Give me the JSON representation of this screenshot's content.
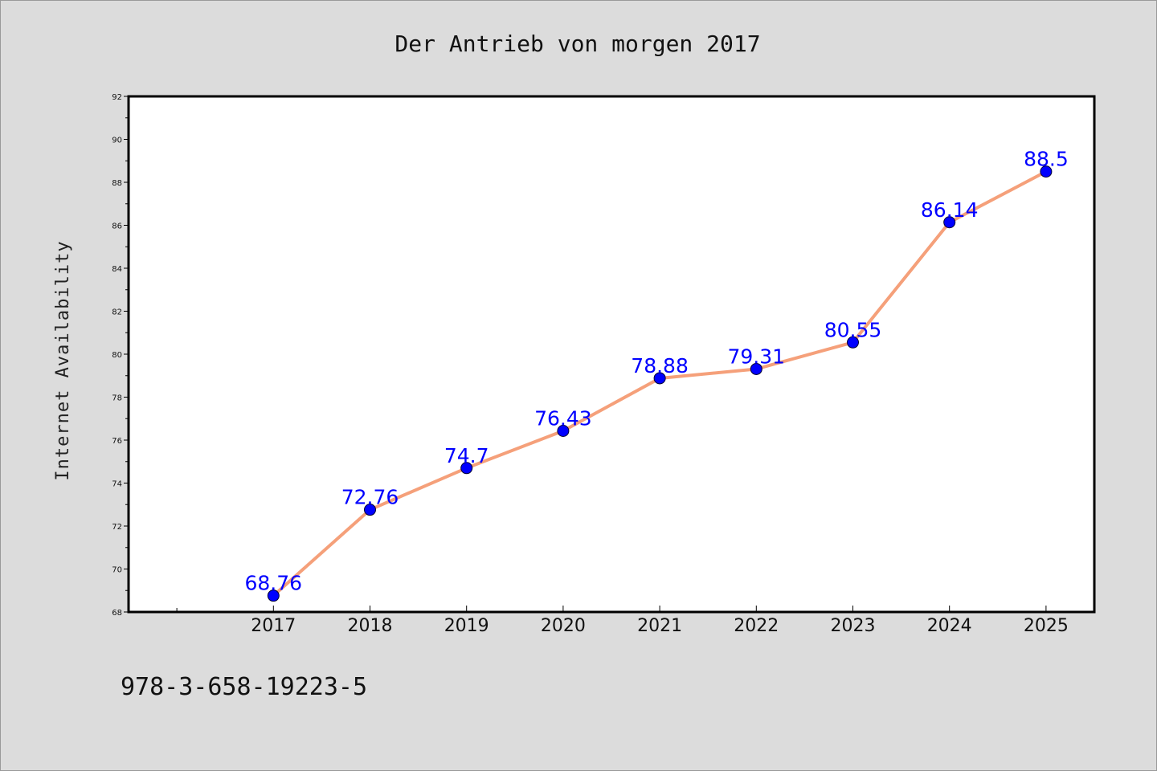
{
  "title": "Der Antrieb von morgen 2017",
  "footer_code": "978-3-658-19223-5",
  "colors": {
    "background": "#dcdcdc",
    "plot_background": "#ffffff",
    "line": "#f5a07a",
    "marker": "#0000ff",
    "data_label": "#0000ff"
  },
  "chart_data": {
    "type": "line",
    "title": "Der Antrieb von morgen 2017",
    "xlabel": "",
    "ylabel": "Internet Availability",
    "categories": [
      "2017",
      "2018",
      "2019",
      "2020",
      "2021",
      "2022",
      "2023",
      "2024",
      "2025"
    ],
    "series": [
      {
        "values": [
          68.76,
          72.76,
          74.7,
          76.43,
          78.88,
          79.31,
          80.55,
          86.14,
          88.5
        ],
        "data_labels": [
          "68.76",
          "72.76",
          "74.7",
          "76.43",
          "78.88",
          "79.31",
          "80.55",
          "86.14",
          "88.5"
        ]
      }
    ],
    "xlim": [
      2015.5,
      2025.5
    ],
    "ylim": [
      68,
      92
    ],
    "y_ticks": [
      68,
      70,
      72,
      74,
      76,
      78,
      80,
      82,
      84,
      86,
      88,
      90,
      92
    ],
    "grid": false,
    "legend": "none",
    "markers": true
  }
}
